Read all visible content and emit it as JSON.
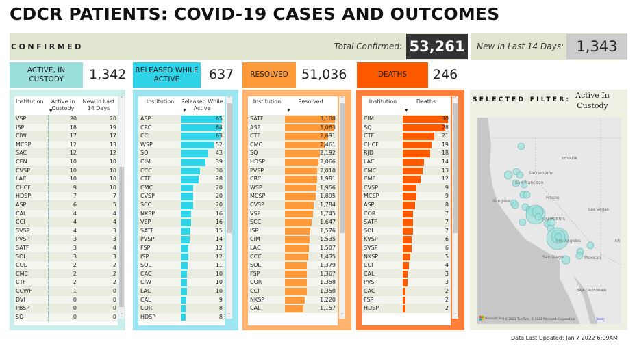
{
  "title": "CDCR PATIENTS: COVID-19 CASES AND OUTCOMES",
  "confirmed": {
    "label": "CONFIRMED",
    "total_label": "Total Confirmed:",
    "total": "53,261",
    "new_label": "New In Last 14 Days:",
    "new": "1,343"
  },
  "kpis": [
    {
      "label": "ACTIVE, IN CUSTODY",
      "value": "1,342",
      "color": "#9adfdc"
    },
    {
      "label": "RELEASED WHILE ACTIVE",
      "value": "637",
      "color": "#2fd4e8"
    },
    {
      "label": "RESOLVED",
      "value": "51,036",
      "color": "#ff9a3b"
    },
    {
      "label": "DEATHS",
      "value": "246",
      "color": "#ff5a00"
    }
  ],
  "tables": {
    "active": {
      "headers": [
        "Institution",
        "Active in Custody",
        "New In Last 14 Days"
      ],
      "panel_color": "#cdefeb",
      "rows": [
        [
          "VSP",
          20,
          20
        ],
        [
          "ISP",
          18,
          19
        ],
        [
          "CIW",
          17,
          17
        ],
        [
          "MCSP",
          12,
          13
        ],
        [
          "SAC",
          12,
          12
        ],
        [
          "CEN",
          10,
          10
        ],
        [
          "CVSP",
          10,
          10
        ],
        [
          "LAC",
          10,
          10
        ],
        [
          "CHCF",
          9,
          10
        ],
        [
          "HDSP",
          7,
          7
        ],
        [
          "ASP",
          6,
          5
        ],
        [
          "CAL",
          4,
          4
        ],
        [
          "CCI",
          4,
          4
        ],
        [
          "SVSP",
          4,
          3
        ],
        [
          "PVSP",
          3,
          3
        ],
        [
          "SATF",
          3,
          4
        ],
        [
          "SOL",
          3,
          3
        ],
        [
          "CCC",
          2,
          2
        ],
        [
          "CMC",
          2,
          2
        ],
        [
          "CTF",
          2,
          2
        ],
        [
          "CCWF",
          1,
          0
        ],
        [
          "DVI",
          0,
          0
        ],
        [
          "PBSP",
          0,
          0
        ],
        [
          "SQ",
          0,
          0
        ]
      ]
    },
    "released": {
      "headers": [
        "Institution",
        "Released While Active"
      ],
      "bar_color": "#2fd4e8",
      "panel_color": "#9de6f1",
      "rows": [
        [
          "ASP",
          65
        ],
        [
          "CRC",
          64
        ],
        [
          "CCI",
          63
        ],
        [
          "WSP",
          52
        ],
        [
          "SQ",
          43
        ],
        [
          "CIM",
          39
        ],
        [
          "CCC",
          30
        ],
        [
          "CTF",
          28
        ],
        [
          "CMC",
          20
        ],
        [
          "CVSP",
          20
        ],
        [
          "SCC",
          20
        ],
        [
          "NKSP",
          16
        ],
        [
          "VSP",
          16
        ],
        [
          "SATF",
          15
        ],
        [
          "PVSP",
          14
        ],
        [
          "FSP",
          12
        ],
        [
          "ISP",
          12
        ],
        [
          "SOL",
          11
        ],
        [
          "CAC",
          10
        ],
        [
          "CIW",
          10
        ],
        [
          "LAC",
          10
        ],
        [
          "CAL",
          9
        ],
        [
          "COR",
          8
        ],
        [
          "HDSP",
          8
        ]
      ]
    },
    "resolved": {
      "headers": [
        "Institution",
        "Resolved"
      ],
      "bar_color": "#ff9a3b",
      "panel_color": "#ffb36e",
      "rows": [
        [
          "SATF",
          "3,108"
        ],
        [
          "ASP",
          "3,063"
        ],
        [
          "CTF",
          "2,691"
        ],
        [
          "CMC",
          "2,461"
        ],
        [
          "SQ",
          "2,192"
        ],
        [
          "HDSP",
          "2,066"
        ],
        [
          "PVSP",
          "2,010"
        ],
        [
          "CRC",
          "1,981"
        ],
        [
          "WSP",
          "1,956"
        ],
        [
          "MCSP",
          "1,895"
        ],
        [
          "CVSP",
          "1,784"
        ],
        [
          "VSP",
          "1,745"
        ],
        [
          "SCC",
          "1,647"
        ],
        [
          "ISP",
          "1,576"
        ],
        [
          "CIM",
          "1,535"
        ],
        [
          "LAC",
          "1,507"
        ],
        [
          "CCC",
          "1,435"
        ],
        [
          "SOL",
          "1,379"
        ],
        [
          "FSP",
          "1,367"
        ],
        [
          "COR",
          "1,358"
        ],
        [
          "CCI",
          "1,350"
        ],
        [
          "NKSP",
          "1,220"
        ],
        [
          "CAL",
          "1,157"
        ]
      ]
    },
    "deaths": {
      "headers": [
        "Institution",
        "Deaths"
      ],
      "bar_color": "#ff5a00",
      "panel_color": "#ff7e3a",
      "rows": [
        [
          "CIM",
          30
        ],
        [
          "SQ",
          28
        ],
        [
          "CTF",
          21
        ],
        [
          "CHCF",
          19
        ],
        [
          "RJD",
          18
        ],
        [
          "LAC",
          14
        ],
        [
          "CMC",
          13
        ],
        [
          "CMF",
          12
        ],
        [
          "CVSP",
          9
        ],
        [
          "MCSP",
          9
        ],
        [
          "ASP",
          8
        ],
        [
          "COR",
          7
        ],
        [
          "SATF",
          7
        ],
        [
          "SOL",
          7
        ],
        [
          "KVSP",
          6
        ],
        [
          "SVSP",
          6
        ],
        [
          "NKSP",
          5
        ],
        [
          "CCI",
          4
        ],
        [
          "CAL",
          3
        ],
        [
          "PVSP",
          3
        ],
        [
          "CAC",
          2
        ],
        [
          "FSP",
          2
        ],
        [
          "HDSP",
          2
        ]
      ]
    }
  },
  "map": {
    "selected_filter_label": "SELECTED FILTER:",
    "selected_filter_value": "Active In Custody",
    "bubble_color": "#9adfdc",
    "labels": {
      "nevada": "NEVADA",
      "sacramento": "Sacramento",
      "sf": "San Francisco",
      "fresno": "Fresno",
      "sanjose": "San Jose",
      "lasvegas": "Las Vegas",
      "california": "CALIFORNIA",
      "la": "Los Angeles",
      "sandiego": "San Diego",
      "mexicali": "Mexicali",
      "baja": "BAJA CALIFORNIA",
      "arizona": "AR"
    },
    "attribution": "© 2021 TomTom, © 2022 Microsoft Corporation",
    "terms": "Terms",
    "bing": "Microsoft Bing"
  },
  "footer": "Data Last Updated: Jan 7 2022 6:09AM"
}
